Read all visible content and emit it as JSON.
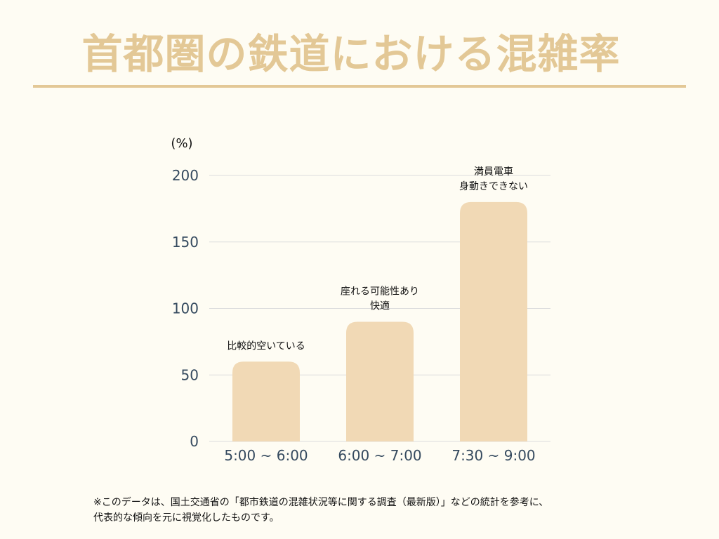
{
  "title": "首都圏の鉄道における混雑率",
  "colors": {
    "background": "#fefcf3",
    "accent": "#e3c896",
    "bar": "#f1d9b5",
    "axis_text": "#34495e",
    "grid": "#dcdcdc"
  },
  "chart_data": {
    "type": "bar",
    "unit_label": "(%)",
    "categories": [
      "5:00 ~ 6:00",
      "6:00 ~ 7:00",
      "7:30 ~ 9:00"
    ],
    "values": [
      60,
      90,
      180
    ],
    "ylim": [
      0,
      200
    ],
    "yticks": [
      0,
      50,
      100,
      150,
      200
    ],
    "annotations": [
      [
        "比較的空いている"
      ],
      [
        "座れる可能性あり",
        "快適"
      ],
      [
        "満員電車",
        "身動きできない"
      ]
    ],
    "grid": true,
    "legend": "none"
  },
  "footnote": {
    "line1": "※このデータは、国土交通省の「都市鉄道の混雑状況等に関する調査（最新版）」などの統計を参考に、",
    "line2": "代表的な傾向を元に視覚化したものです。"
  }
}
